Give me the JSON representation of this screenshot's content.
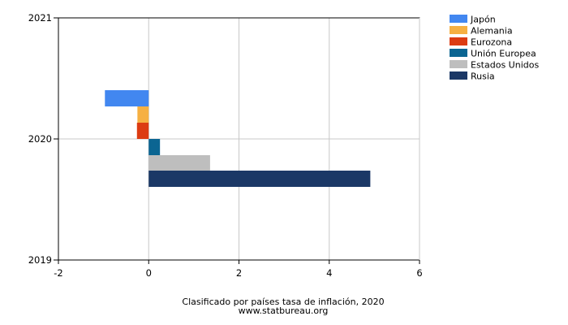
{
  "chart_data": {
    "type": "bar",
    "orientation": "horizontal",
    "title": "Clasificado por países tasa de inflación, 2020",
    "source": "www.statbureau.org",
    "xlabel": "",
    "ylabel": "",
    "xlim": [
      -2,
      6
    ],
    "x_ticks": [
      "-2",
      "0",
      "2",
      "4",
      "6"
    ],
    "y_ticks": [
      "2021",
      "2020",
      "2019"
    ],
    "grid": true,
    "legend_position": "top-right",
    "series": [
      {
        "name": "Japón",
        "value": -0.97,
        "color": "#4287f0"
      },
      {
        "name": "Alemania",
        "value": -0.25,
        "color": "#f6b042"
      },
      {
        "name": "Eurozona",
        "value": -0.26,
        "color": "#dc3b12"
      },
      {
        "name": "Unión Europea",
        "value": 0.25,
        "color": "#0b6592"
      },
      {
        "name": "Estados Unidos",
        "value": 1.36,
        "color": "#bebebe"
      },
      {
        "name": "Rusia",
        "value": 4.91,
        "color": "#1b3866"
      }
    ]
  }
}
